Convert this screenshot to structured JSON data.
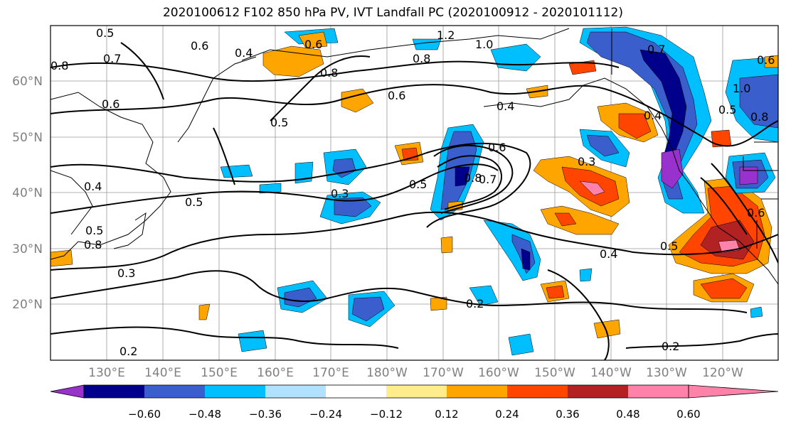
{
  "title": "2020100612 F102 850 hPa PV, IVT Landfall PC (2020100912 - 2020101112)",
  "lat_labels": [
    "60°N",
    "50°N",
    "40°N",
    "30°N",
    "20°N"
  ],
  "lon_labels": [
    "130°E",
    "140°E",
    "150°E",
    "160°E",
    "170°E",
    "180°W",
    "170°W",
    "160°W",
    "150°W",
    "140°W",
    "130°W",
    "120°W"
  ],
  "contour_labels": [
    "0.5",
    "0.6",
    "0.7",
    "0.8",
    "0.6",
    "0.4",
    "0.6",
    "0.5",
    "0.8",
    "0.6",
    "1.2",
    "1.0",
    "0.8",
    "0.4",
    "0.5",
    "0.6",
    "0.7",
    "0.8",
    "0.3",
    "0.5",
    "0.3",
    "0.4",
    "0.5",
    "0.8",
    "0.2",
    "0.2",
    "0.4",
    "0.5",
    "0.2",
    "0.3",
    "0.6",
    "0.4",
    "0.7",
    "1.0",
    "0.5",
    "0.8",
    "0.6"
  ],
  "colorbar": {
    "colors": [
      "#9932CC",
      "#00008B",
      "#3A5FCD",
      "#00BFFF",
      "#B0E2FF",
      "#FFFFFF",
      "#FFEC8B",
      "#FFA500",
      "#FF4500",
      "#B22222",
      "#FF82AB"
    ],
    "tick_labels": [
      "−0.60",
      "−0.48",
      "−0.36",
      "−0.24",
      "−0.12",
      "0.12",
      "0.24",
      "0.36",
      "0.48",
      "0.60"
    ]
  }
}
